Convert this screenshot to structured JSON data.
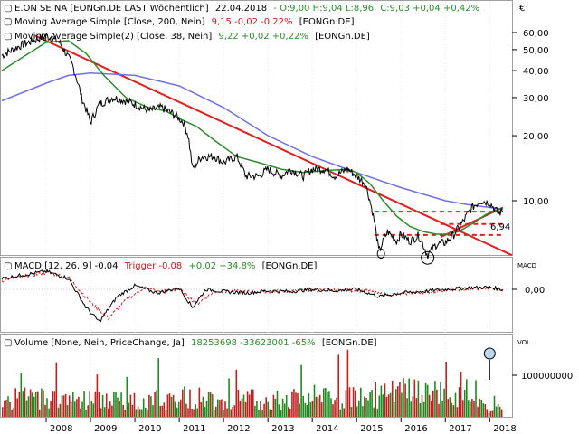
{
  "currency_symbol": "€",
  "panels": {
    "price": {
      "header": {
        "instrument": "E.ON  SE NA [EONGn.DE LAST Wöchentlich]",
        "date": "22.04.2018",
        "ohlc": "- O:9,00 H:9,04 L:8,96",
        "close": "C:9,03 +0,04 +0,42%"
      },
      "ma200": {
        "label": "Moving Average Simple [Close, 200, Nein]",
        "value": "9,15 -0,02 -0,22%",
        "ticker": "[EONGn.DE]"
      },
      "ma38": {
        "label": "Moving Average Simple(2) [Close, 38, Nein]",
        "value": "9,22 +0,02 +0,22%",
        "ticker": "[EONGn.DE]"
      },
      "y_ticks": [
        "60,00",
        "50,00",
        "40,00",
        "30,00",
        "20,00",
        "10,00"
      ],
      "annotation": "6,94"
    },
    "macd": {
      "label": "MACD [12, 26, 9] -0,04",
      "trigger": "Trigger -0,08",
      "change": "+0,02 +34,8%",
      "ticker": "[EONGn.DE]",
      "axis_title": "MACD",
      "y_ticks": [
        "0,00"
      ]
    },
    "volume": {
      "label": "Volume [None, Nein, PriceChange, Ja]",
      "value": "18253698 -33623001 -65%",
      "ticker": "[EONGn.DE]",
      "axis_title": "VOL",
      "y_ticks": [
        "100000000"
      ]
    }
  },
  "x_ticks": [
    "2008",
    "2009",
    "2010",
    "2011",
    "2012",
    "2013",
    "2014",
    "2015",
    "2016",
    "2017",
    "2018"
  ],
  "colors": {
    "price": "#000000",
    "ma200": "#7070e0",
    "ma38": "#2e8b2e",
    "trendline": "#e02020",
    "vol_up": "#208a20",
    "vol_down": "#c02020",
    "macd": "#000000",
    "trigger": "#d02020"
  },
  "chart_data": [
    {
      "type": "line",
      "title": "E.ON SE NA [EONGn.DE LAST Wöchentlich]",
      "x_range": [
        "2007",
        "2018.4"
      ],
      "y_scale": "log",
      "ylim": [
        5,
        75
      ],
      "series": [
        {
          "name": "E.ON SE NA",
          "x": [
            2007.0,
            2007.4,
            2007.8,
            2008.0,
            2008.3,
            2008.6,
            2008.8,
            2009.0,
            2009.2,
            2009.5,
            2009.8,
            2010.0,
            2010.3,
            2010.6,
            2010.9,
            2011.1,
            2011.2,
            2011.3,
            2011.5,
            2011.8,
            2012.0,
            2012.3,
            2012.5,
            2012.8,
            2013.0,
            2013.3,
            2013.5,
            2013.8,
            2014.0,
            2014.3,
            2014.5,
            2014.8,
            2015.0,
            2015.2,
            2015.4,
            2015.5,
            2015.7,
            2015.9,
            2016.0,
            2016.2,
            2016.4,
            2016.6,
            2016.8,
            2017.0,
            2017.2,
            2017.4,
            2017.6,
            2017.8,
            2018.0,
            2018.2,
            2018.3
          ],
          "values": [
            47,
            52,
            56,
            58,
            54,
            42,
            30,
            23,
            28,
            30,
            29,
            28,
            26,
            27,
            25,
            23,
            20,
            14,
            16,
            16,
            15,
            16,
            13,
            13,
            14,
            13,
            14,
            13,
            14,
            14,
            13,
            14,
            13,
            12,
            8,
            5.8,
            7.2,
            6.5,
            7,
            6.5,
            6.9,
            5.6,
            6.3,
            6.4,
            7,
            8,
            9.3,
            10,
            9.8,
            8.7,
            9.03
          ]
        },
        {
          "name": "Moving Average Simple [Close, 200, Nein]",
          "x": [
            2007.0,
            2008.0,
            2008.5,
            2009.0,
            2010.0,
            2011.0,
            2012.0,
            2013.0,
            2014.0,
            2015.0,
            2016.0,
            2017.0,
            2017.5,
            2018.0,
            2018.3
          ],
          "values": [
            29,
            35,
            38,
            39,
            38,
            34,
            27,
            20,
            16,
            13.5,
            11.5,
            10,
            9.6,
            9.3,
            9.15
          ]
        },
        {
          "name": "Moving Average Simple(2) [Close, 38, Nein]",
          "x": [
            2007.0,
            2007.6,
            2008.0,
            2008.5,
            2008.9,
            2009.3,
            2009.8,
            2010.3,
            2010.7,
            2011.0,
            2011.4,
            2011.8,
            2012.3,
            2012.8,
            2013.3,
            2013.8,
            2014.3,
            2014.8,
            2015.0,
            2015.3,
            2015.6,
            2015.9,
            2016.2,
            2016.5,
            2016.8,
            2017.0,
            2017.3,
            2017.6,
            2017.9,
            2018.1,
            2018.3
          ],
          "values": [
            40,
            48,
            54,
            55,
            48,
            38,
            30,
            27,
            26,
            24,
            22,
            19,
            16,
            15,
            14,
            13.5,
            13.8,
            14,
            13.5,
            12,
            10,
            8.5,
            7.6,
            7.2,
            7.0,
            7.0,
            7.2,
            7.8,
            8.6,
            9,
            9.22
          ]
        }
      ]
    },
    {
      "type": "line",
      "title": "MACD [12, 26, 9]",
      "series": [
        {
          "name": "MACD",
          "x": [
            2007.0,
            2007.5,
            2008.0,
            2008.5,
            2008.9,
            2009.2,
            2009.6,
            2010.0,
            2010.5,
            2011.0,
            2011.3,
            2011.6,
            2012.0,
            2012.5,
            2013.0,
            2013.5,
            2014.0,
            2014.5,
            2015.0,
            2015.5,
            2016.0,
            2016.5,
            2017.0,
            2017.5,
            2018.0,
            2018.3
          ],
          "values": [
            1.5,
            2.0,
            2.5,
            1.5,
            -2.5,
            -4.5,
            -1.0,
            0.5,
            -0.5,
            0.2,
            -2.5,
            0.0,
            -0.3,
            -0.5,
            -0.2,
            -0.3,
            0.0,
            -0.2,
            0.0,
            -1.0,
            -0.5,
            -0.3,
            0.0,
            0.2,
            0.3,
            -0.04
          ]
        },
        {
          "name": "Trigger",
          "x": [
            2007.0,
            2007.5,
            2008.0,
            2008.5,
            2009.0,
            2009.4,
            2009.8,
            2010.2,
            2010.6,
            2011.0,
            2011.4,
            2011.8,
            2012.2,
            2012.7,
            2013.2,
            2013.7,
            2014.2,
            2014.7,
            2015.2,
            2015.7,
            2016.2,
            2016.7,
            2017.2,
            2017.7,
            2018.0,
            2018.3
          ],
          "values": [
            1.2,
            1.8,
            2.3,
            1.7,
            -1.8,
            -4.0,
            -1.5,
            0.2,
            -0.3,
            0.0,
            -2.0,
            -0.3,
            -0.3,
            -0.4,
            -0.3,
            -0.2,
            -0.1,
            -0.1,
            -0.2,
            -0.8,
            -0.5,
            -0.3,
            0.0,
            0.1,
            0.2,
            -0.08
          ]
        }
      ]
    },
    {
      "type": "bar",
      "title": "Volume [None, Nein, PriceChange, Ja]",
      "series": [
        {
          "name": "Volume",
          "x": [
            2007.0,
            2008.0,
            2009.0,
            2010.0,
            2011.0,
            2012.0,
            2013.0,
            2014.0,
            2015.0,
            2016.0,
            2017.0,
            2018.0
          ],
          "values": [
            40000000,
            45000000,
            40000000,
            35000000,
            45000000,
            40000000,
            40000000,
            40000000,
            45000000,
            55000000,
            55000000,
            18253698
          ]
        }
      ]
    }
  ]
}
